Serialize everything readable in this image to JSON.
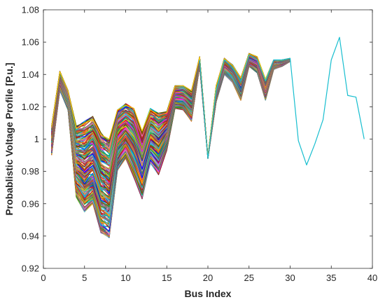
{
  "chart_data": {
    "type": "line",
    "title": "",
    "xlabel": "Bus Index",
    "ylabel": "Probablistic Voltage Profile [P.u.]",
    "xlim": [
      0,
      40
    ],
    "ylim": [
      0.92,
      1.08
    ],
    "xticks": [
      0,
      5,
      10,
      15,
      20,
      25,
      30,
      35,
      40
    ],
    "yticks": [
      0.92,
      0.94,
      0.96,
      0.98,
      1,
      1.02,
      1.04,
      1.06,
      1.08
    ],
    "xtick_labels": [
      "0",
      "5",
      "10",
      "15",
      "20",
      "25",
      "30",
      "35",
      "40"
    ],
    "ytick_labels": [
      "0.92",
      "0.94",
      "0.96",
      "0.98",
      "1",
      "1.02",
      "1.04",
      "1.06",
      "1.08"
    ],
    "grid": false,
    "legend": "none",
    "x": [
      1,
      2,
      3,
      4,
      5,
      6,
      7,
      8,
      9,
      10,
      11,
      12,
      13,
      14,
      15,
      16,
      17,
      18,
      19,
      20,
      21,
      22,
      23,
      24,
      25,
      26,
      27,
      28,
      29,
      30
    ],
    "series_count": 200,
    "envelope_upper": [
      1.008,
      1.042,
      1.03,
      1.008,
      1.011,
      1.014,
      1.004,
      1.0,
      1.018,
      1.022,
      1.019,
      1.005,
      1.019,
      1.016,
      1.017,
      1.033,
      1.033,
      1.03,
      1.051,
      0.989,
      1.033,
      1.05,
      1.046,
      1.038,
      1.053,
      1.051,
      1.037,
      1.049,
      1.049,
      1.05
    ],
    "envelope_lower": [
      0.99,
      1.03,
      1.018,
      0.964,
      0.955,
      0.96,
      0.942,
      0.939,
      0.98,
      0.988,
      0.976,
      0.963,
      0.985,
      0.978,
      0.993,
      1.019,
      1.018,
      1.011,
      1.045,
      0.988,
      1.023,
      1.04,
      1.035,
      1.024,
      1.045,
      1.041,
      1.024,
      1.043,
      1.045,
      1.048
    ],
    "extension_series": {
      "x": [
        19,
        20,
        21,
        22,
        23,
        24,
        25,
        26,
        27,
        28,
        29,
        30,
        31,
        32,
        33,
        34,
        35,
        36,
        37,
        38,
        39
      ],
      "values": [
        1.049,
        0.988,
        1.03,
        1.049,
        1.044,
        1.036,
        1.052,
        1.049,
        1.036,
        1.049,
        1.049,
        1.05,
        0.999,
        0.984,
        0.997,
        1.012,
        1.049,
        1.063,
        1.027,
        1.026,
        1.0
      ],
      "color": "#17becf"
    },
    "colors": [
      "#0072bd",
      "#d95319",
      "#edb120",
      "#7e2f8e",
      "#77ac30",
      "#4dbeee",
      "#a2142f",
      "#1f77b4",
      "#ff7f0e",
      "#2ca02c",
      "#d62728",
      "#9467bd",
      "#8c564b",
      "#e377c2",
      "#7f7f7f",
      "#bcbd22",
      "#17becf",
      "#00b050",
      "#ff00ff",
      "#0000ff",
      "#ff0000",
      "#00cccc",
      "#993300",
      "#666600",
      "#ffcc00"
    ]
  }
}
